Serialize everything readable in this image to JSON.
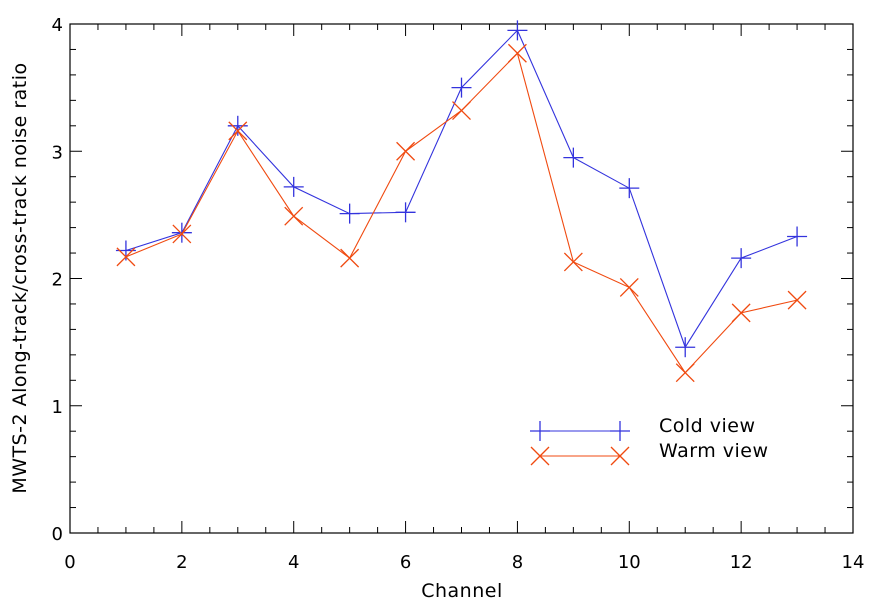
{
  "chart_data": {
    "type": "line",
    "title": "",
    "xlabel": "Channel",
    "ylabel": "MWTS-2 Along-track/cross-track noise ratio",
    "xlim": [
      0,
      14
    ],
    "ylim": [
      0,
      4
    ],
    "x_ticks": [
      "0",
      "2",
      "4",
      "6",
      "8",
      "10",
      "12",
      "14"
    ],
    "y_ticks": [
      "0",
      "1",
      "2",
      "3",
      "4"
    ],
    "grid": false,
    "legend_position": "lower-right",
    "x": [
      1,
      2,
      3,
      4,
      5,
      6,
      7,
      8,
      9,
      10,
      11,
      12,
      13
    ],
    "series": [
      {
        "name": "Cold view",
        "marker": "plus",
        "color": "#3333dd",
        "values": [
          2.22,
          2.36,
          3.2,
          2.72,
          2.51,
          2.52,
          3.5,
          3.95,
          2.95,
          2.71,
          1.46,
          2.16,
          2.33
        ]
      },
      {
        "name": "Warm view",
        "marker": "cross",
        "color": "#f04a10",
        "values": [
          2.17,
          2.35,
          3.16,
          2.49,
          2.16,
          3.0,
          3.32,
          3.77,
          2.13,
          1.93,
          1.26,
          1.73,
          1.83
        ]
      }
    ]
  }
}
